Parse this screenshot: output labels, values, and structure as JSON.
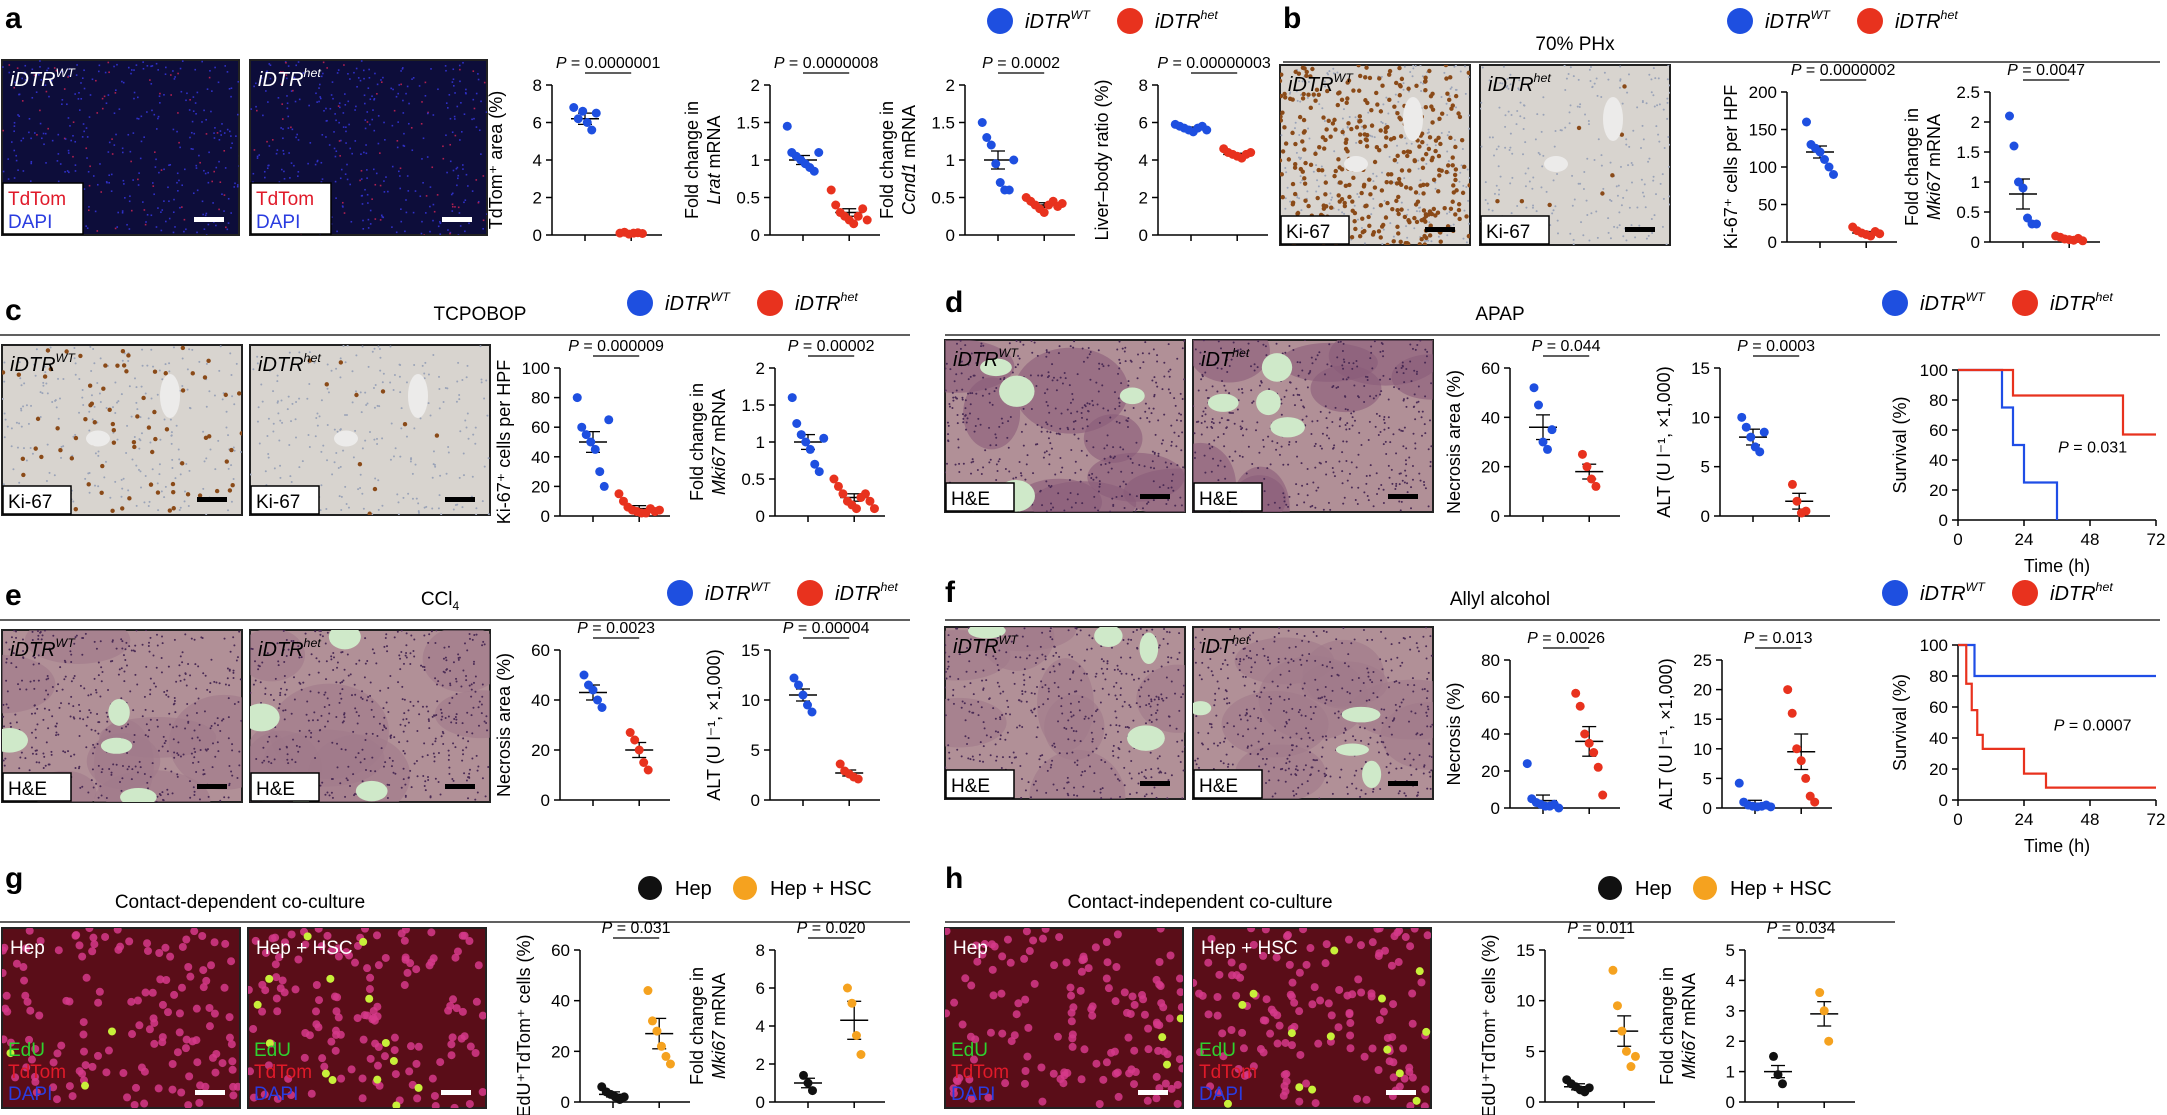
{
  "colors": {
    "wt": "#1e4fe0",
    "het": "#e8321e",
    "hep": "#111111",
    "hep_hsc": "#f5a21f",
    "survival_wt": "#1f4de6",
    "survival_het": "#e8321e"
  },
  "legend": {
    "wt": "iDTR",
    "wt_sup": "WT",
    "het": "iDTR",
    "het_sup": "het",
    "hep": "Hep",
    "hep_hsc": "Hep + HSC"
  },
  "images": {
    "a": [
      {
        "label": "iDTR",
        "sup": "WT",
        "stains": [
          "TdTom",
          "DAPI"
        ]
      },
      {
        "label": "iDTR",
        "sup": "het",
        "stains": [
          "TdTom",
          "DAPI"
        ]
      }
    ],
    "b": [
      {
        "label": "iDTR",
        "sup": "WT",
        "stains": [
          "Ki-67"
        ]
      },
      {
        "label": "iDTR",
        "sup": "het",
        "stains": [
          "Ki-67"
        ]
      }
    ],
    "c": [
      {
        "label": "iDTR",
        "sup": "WT",
        "stains": [
          "Ki-67"
        ]
      },
      {
        "label": "iDTR",
        "sup": "het",
        "stains": [
          "Ki-67"
        ]
      }
    ],
    "d": [
      {
        "label": "iDTR",
        "sup": "WT",
        "stains": [
          "H&E"
        ]
      },
      {
        "label": "iDT",
        "sup": "het",
        "stains": [
          "H&E"
        ]
      }
    ],
    "e": [
      {
        "label": "iDTR",
        "sup": "WT",
        "stains": [
          "H&E"
        ]
      },
      {
        "label": "iDTR",
        "sup": "het",
        "stains": [
          "H&E"
        ]
      }
    ],
    "f": [
      {
        "label": "iDTR",
        "sup": "WT",
        "stains": [
          "H&E"
        ]
      },
      {
        "label": "iDT",
        "sup": "het",
        "stains": [
          "H&E"
        ]
      }
    ],
    "g": [
      {
        "label": "Hep",
        "stains": [
          "EdU",
          "TdTom",
          "DAPI"
        ]
      },
      {
        "label": "Hep + HSC",
        "stains": [
          "EdU",
          "TdTom",
          "DAPI"
        ]
      }
    ],
    "h": [
      {
        "label": "Hep",
        "stains": [
          "EdU",
          "TdTom",
          "DAPI"
        ]
      },
      {
        "label": "Hep + HSC",
        "stains": [
          "EdU",
          "TdTom",
          "DAPI"
        ]
      }
    ]
  },
  "panels": [
    {
      "letter": "a",
      "heading": "",
      "legend": "wt-het"
    },
    {
      "letter": "b",
      "heading": "70% PHx",
      "legend": "wt-het"
    },
    {
      "letter": "c",
      "heading": "TCPOBOP",
      "legend": "wt-het"
    },
    {
      "letter": "d",
      "heading": "APAP",
      "legend": "wt-het"
    },
    {
      "letter": "e",
      "heading": "CCl",
      "heading_sub": "4",
      "legend": "wt-het"
    },
    {
      "letter": "f",
      "heading": "Allyl alcohol",
      "legend": "wt-het"
    },
    {
      "letter": "g",
      "heading": "Contact-dependent co-culture",
      "legend": "hep"
    },
    {
      "letter": "h",
      "heading": "Contact-independent co-culture",
      "legend": "hep"
    }
  ],
  "chart_data": [
    {
      "id": "a1",
      "type": "scatter",
      "ylabel": "TdTom⁺ area (%)",
      "ylim": [
        0,
        8
      ],
      "yticks": [
        0,
        2,
        4,
        6,
        8
      ],
      "p": "P = 0.0000001",
      "groups": [
        {
          "name": "iDTR WT",
          "mean": 6.2,
          "sem": 0.3,
          "values": [
            6.8,
            6.2,
            6.6,
            6.0,
            5.6,
            6.5
          ]
        },
        {
          "name": "iDTR het",
          "mean": 0.1,
          "sem": 0.03,
          "values": [
            0.1,
            0.15,
            0.05,
            0.1,
            0.12,
            0.08
          ]
        }
      ]
    },
    {
      "id": "a2",
      "type": "scatter",
      "ylabel": "Fold change in Lrat mRNA",
      "ylim": [
        0,
        2.0
      ],
      "yticks": [
        0,
        0.5,
        1.0,
        1.5,
        2.0
      ],
      "p": "P = 0.0000008",
      "groups": [
        {
          "name": "iDTR WT",
          "mean": 1.0,
          "sem": 0.06,
          "values": [
            1.45,
            1.1,
            1.05,
            1.0,
            0.95,
            0.9,
            0.85,
            1.1
          ]
        },
        {
          "name": "iDTR het",
          "mean": 0.3,
          "sem": 0.05,
          "values": [
            0.6,
            0.4,
            0.3,
            0.25,
            0.2,
            0.15,
            0.25,
            0.35,
            0.2
          ]
        }
      ]
    },
    {
      "id": "a3",
      "type": "scatter",
      "ylabel": "Fold change in Ccnd1 mRNA",
      "ylim": [
        0,
        2.0
      ],
      "yticks": [
        0,
        0.5,
        1.0,
        1.5,
        2.0
      ],
      "p": "P = 0.0002",
      "groups": [
        {
          "name": "iDTR WT",
          "mean": 1.0,
          "sem": 0.12,
          "values": [
            1.5,
            1.3,
            1.2,
            0.95,
            0.7,
            0.6,
            0.6,
            1.0
          ]
        },
        {
          "name": "iDTR het",
          "mean": 0.4,
          "sem": 0.03,
          "values": [
            0.5,
            0.45,
            0.4,
            0.35,
            0.3,
            0.4,
            0.45,
            0.38,
            0.42
          ]
        }
      ]
    },
    {
      "id": "a4",
      "type": "scatter",
      "ylabel": "Liver–body ratio (%)",
      "ylim": [
        0,
        8
      ],
      "yticks": [
        0,
        2,
        4,
        6,
        8
      ],
      "p": "P = 0.00000003",
      "groups": [
        {
          "name": "iDTR WT",
          "mean": 5.7,
          "sem": 0.06,
          "values": [
            5.9,
            5.8,
            5.7,
            5.6,
            5.5,
            5.7,
            5.8,
            5.6
          ]
        },
        {
          "name": "iDTR het",
          "mean": 4.3,
          "sem": 0.06,
          "values": [
            4.6,
            4.4,
            4.3,
            4.2,
            4.1,
            4.3,
            4.4
          ]
        }
      ]
    },
    {
      "id": "b1",
      "type": "scatter",
      "ylabel": "Ki-67⁺ cells per HPF",
      "ylim": [
        0,
        200
      ],
      "yticks": [
        0,
        50,
        100,
        150,
        200
      ],
      "p": "P = 0.0000002",
      "groups": [
        {
          "name": "iDTR WT",
          "mean": 120,
          "sem": 8,
          "values": [
            160,
            130,
            125,
            120,
            110,
            100,
            90
          ]
        },
        {
          "name": "iDTR het",
          "mean": 12,
          "sem": 2,
          "values": [
            20,
            15,
            12,
            10,
            8,
            14,
            11
          ]
        }
      ]
    },
    {
      "id": "b2",
      "type": "scatter",
      "ylabel": "Fold change in Mki67 mRNA",
      "ylim": [
        0,
        2.5
      ],
      "yticks": [
        0,
        0.5,
        1.0,
        1.5,
        2.0,
        2.5
      ],
      "p": "P = 0.0047",
      "groups": [
        {
          "name": "iDTR WT",
          "mean": 0.8,
          "sem": 0.25,
          "values": [
            2.1,
            1.6,
            1.0,
            0.9,
            0.4,
            0.3,
            0.3
          ]
        },
        {
          "name": "iDTR het",
          "mean": 0.05,
          "sem": 0.02,
          "values": [
            0.1,
            0.08,
            0.05,
            0.04,
            0.03,
            0.06,
            0.02
          ]
        }
      ]
    },
    {
      "id": "c1",
      "type": "scatter",
      "ylabel": "Ki-67⁺ cells per HPF",
      "ylim": [
        0,
        100
      ],
      "yticks": [
        0,
        20,
        40,
        60,
        80,
        100
      ],
      "p": "P = 0.000009",
      "groups": [
        {
          "name": "iDTR WT",
          "mean": 50,
          "sem": 7,
          "values": [
            80,
            60,
            55,
            50,
            45,
            30,
            20,
            65
          ]
        },
        {
          "name": "iDTR het",
          "mean": 5,
          "sem": 2,
          "values": [
            15,
            10,
            6,
            4,
            3,
            2,
            2,
            5,
            3,
            4
          ]
        }
      ]
    },
    {
      "id": "c2",
      "type": "scatter",
      "ylabel": "Fold change in Mki67 mRNA",
      "ylim": [
        0,
        2.0
      ],
      "yticks": [
        0,
        0.5,
        1.0,
        1.5,
        2.0
      ],
      "p": "P = 0.00002",
      "groups": [
        {
          "name": "iDTR WT",
          "mean": 1.0,
          "sem": 0.1,
          "values": [
            1.6,
            1.25,
            1.1,
            1.0,
            0.9,
            0.7,
            0.6,
            1.05
          ]
        },
        {
          "name": "iDTR het",
          "mean": 0.25,
          "sem": 0.05,
          "values": [
            0.5,
            0.4,
            0.3,
            0.2,
            0.15,
            0.1,
            0.25,
            0.3,
            0.2,
            0.1
          ]
        }
      ]
    },
    {
      "id": "d1",
      "type": "scatter",
      "ylabel": "Necrosis area (%)",
      "ylim": [
        0,
        60
      ],
      "yticks": [
        0,
        20,
        40,
        60
      ],
      "p": "P = 0.044",
      "groups": [
        {
          "name": "iDTR WT",
          "mean": 36,
          "sem": 5,
          "values": [
            52,
            45,
            30,
            27,
            35
          ]
        },
        {
          "name": "iDTR het",
          "mean": 18,
          "sem": 3,
          "values": [
            25,
            20,
            15,
            12
          ]
        }
      ]
    },
    {
      "id": "d2",
      "type": "scatter",
      "ylabel": "ALT (U l⁻¹, ×1,000)",
      "ylim": [
        0,
        15
      ],
      "yticks": [
        0,
        5,
        10,
        15
      ],
      "p": "P = 0.0003",
      "groups": [
        {
          "name": "iDTR WT",
          "mean": 8,
          "sem": 0.8,
          "values": [
            10,
            9,
            8,
            7,
            6.5,
            8.5
          ]
        },
        {
          "name": "iDTR het",
          "mean": 1.5,
          "sem": 0.8,
          "values": [
            3.2,
            1.5,
            0.3,
            0.5
          ]
        }
      ]
    },
    {
      "id": "d3",
      "type": "line",
      "ylabel": "Survival (%)",
      "xlabel": "Time (h)",
      "ylim": [
        0,
        100
      ],
      "yticks": [
        0,
        20,
        40,
        60,
        80,
        100
      ],
      "xlim": [
        0,
        72
      ],
      "xticks": [
        0,
        24,
        48,
        72
      ],
      "p": "P = 0.031",
      "series": [
        {
          "name": "iDTR WT",
          "steps": [
            [
              0,
              100
            ],
            [
              16,
              100
            ],
            [
              16,
              75
            ],
            [
              20,
              75
            ],
            [
              20,
              50
            ],
            [
              24,
              50
            ],
            [
              24,
              25
            ],
            [
              36,
              25
            ],
            [
              36,
              0
            ]
          ]
        },
        {
          "name": "iDTR het",
          "steps": [
            [
              0,
              100
            ],
            [
              20,
              100
            ],
            [
              20,
              83
            ],
            [
              60,
              83
            ],
            [
              60,
              57
            ],
            [
              72,
              57
            ]
          ]
        }
      ]
    },
    {
      "id": "e1",
      "type": "scatter",
      "ylabel": "Necrosis area (%)",
      "ylim": [
        0,
        60
      ],
      "yticks": [
        0,
        20,
        40,
        60
      ],
      "p": "P = 0.0023",
      "groups": [
        {
          "name": "iDTR WT",
          "mean": 43,
          "sem": 3,
          "values": [
            50,
            46,
            44,
            40,
            37
          ]
        },
        {
          "name": "iDTR het",
          "mean": 20,
          "sem": 3,
          "values": [
            27,
            24,
            20,
            15,
            12
          ]
        }
      ]
    },
    {
      "id": "e2",
      "type": "scatter",
      "ylabel": "ALT (U l⁻¹, ×1,000)",
      "ylim": [
        0,
        15
      ],
      "yticks": [
        0,
        5,
        10,
        15
      ],
      "p": "P = 0.00004",
      "groups": [
        {
          "name": "iDTR WT",
          "mean": 10.5,
          "sem": 0.6,
          "values": [
            12.2,
            11.5,
            10.5,
            9.5,
            8.8
          ]
        },
        {
          "name": "iDTR het",
          "mean": 2.7,
          "sem": 0.3,
          "values": [
            3.6,
            2.9,
            2.6,
            2.3,
            2.1
          ]
        }
      ]
    },
    {
      "id": "f1",
      "type": "scatter",
      "ylabel": "Necrosis (%)",
      "ylim": [
        0,
        80
      ],
      "yticks": [
        0,
        20,
        40,
        60,
        80
      ],
      "p": "P = 0.0026",
      "groups": [
        {
          "name": "iDTR WT",
          "mean": 4,
          "sem": 3,
          "values": [
            24,
            5,
            3,
            2,
            1,
            1,
            2,
            0
          ]
        },
        {
          "name": "iDTR het",
          "mean": 36,
          "sem": 8,
          "values": [
            62,
            55,
            40,
            35,
            30,
            22,
            7
          ]
        }
      ]
    },
    {
      "id": "f2",
      "type": "scatter",
      "ylabel": "ALT (U l⁻¹, ×1,000)",
      "ylim": [
        0,
        25
      ],
      "yticks": [
        0,
        5,
        10,
        15,
        20,
        25
      ],
      "p": "P = 0.013",
      "groups": [
        {
          "name": "iDTR WT",
          "mean": 0.8,
          "sem": 0.5,
          "values": [
            4.2,
            1,
            0.5,
            0.3,
            0.2,
            0.3,
            0.5,
            0.2
          ]
        },
        {
          "name": "iDTR het",
          "mean": 9.5,
          "sem": 3,
          "values": [
            20,
            16,
            10,
            8,
            5,
            2,
            1
          ]
        }
      ]
    },
    {
      "id": "f3",
      "type": "line",
      "ylabel": "Survival (%)",
      "xlabel": "Time (h)",
      "ylim": [
        0,
        100
      ],
      "yticks": [
        0,
        20,
        40,
        60,
        80,
        100
      ],
      "xlim": [
        0,
        72
      ],
      "xticks": [
        0,
        24,
        48,
        72
      ],
      "p": "P = 0.0007",
      "series": [
        {
          "name": "iDTR WT",
          "steps": [
            [
              0,
              100
            ],
            [
              6,
              100
            ],
            [
              6,
              80
            ],
            [
              72,
              80
            ]
          ]
        },
        {
          "name": "iDTR het",
          "steps": [
            [
              0,
              100
            ],
            [
              3,
              100
            ],
            [
              3,
              75
            ],
            [
              5,
              75
            ],
            [
              5,
              58
            ],
            [
              7,
              58
            ],
            [
              7,
              42
            ],
            [
              9,
              42
            ],
            [
              9,
              33
            ],
            [
              24,
              33
            ],
            [
              24,
              17
            ],
            [
              32,
              17
            ],
            [
              32,
              8
            ],
            [
              72,
              8
            ]
          ]
        }
      ]
    },
    {
      "id": "g1",
      "type": "scatter",
      "ylabel": "EdU⁺TdTom⁺ cells (%)",
      "ylim": [
        0,
        60
      ],
      "yticks": [
        0,
        20,
        40,
        60
      ],
      "p": "P = 0.031",
      "groups": [
        {
          "name": "Hep",
          "mean": 3,
          "sem": 1,
          "values": [
            6,
            4,
            3,
            2,
            1,
            2
          ]
        },
        {
          "name": "Hep + HSC",
          "mean": 27,
          "sem": 6,
          "values": [
            44,
            32,
            28,
            22,
            18,
            15
          ]
        }
      ]
    },
    {
      "id": "g2",
      "type": "scatter",
      "ylabel": "Fold change in Mki67 mRNA",
      "ylim": [
        0,
        8
      ],
      "yticks": [
        0,
        2,
        4,
        6,
        8
      ],
      "p": "P = 0.020",
      "groups": [
        {
          "name": "Hep",
          "mean": 1.0,
          "sem": 0.25,
          "values": [
            1.4,
            1.0,
            0.6
          ]
        },
        {
          "name": "Hep + HSC",
          "mean": 4.3,
          "sem": 1,
          "values": [
            6,
            5.2,
            3.5,
            2.5
          ]
        }
      ]
    },
    {
      "id": "h1",
      "type": "scatter",
      "ylabel": "EdU⁺TdTom⁺ cells (%)",
      "ylim": [
        0,
        15
      ],
      "yticks": [
        0,
        5,
        10,
        15
      ],
      "p": "P = 0.011",
      "groups": [
        {
          "name": "Hep",
          "mean": 1.5,
          "sem": 0.3,
          "values": [
            2.2,
            1.8,
            1.5,
            1.2,
            1.0,
            1.4
          ]
        },
        {
          "name": "Hep + HSC",
          "mean": 7,
          "sem": 1.5,
          "values": [
            13,
            9.5,
            7,
            5,
            3.5,
            4.5
          ]
        }
      ]
    },
    {
      "id": "h2",
      "type": "scatter",
      "ylabel": "Fold change in Mki67 mRNA",
      "ylim": [
        0,
        5
      ],
      "yticks": [
        0,
        1,
        2,
        3,
        4,
        5
      ],
      "p": "P = 0.034",
      "groups": [
        {
          "name": "Hep",
          "mean": 1.0,
          "sem": 0.2,
          "values": [
            1.5,
            0.9,
            0.6
          ]
        },
        {
          "name": "Hep + HSC",
          "mean": 2.9,
          "sem": 0.4,
          "values": [
            3.6,
            3.0,
            2.0
          ]
        }
      ]
    }
  ]
}
